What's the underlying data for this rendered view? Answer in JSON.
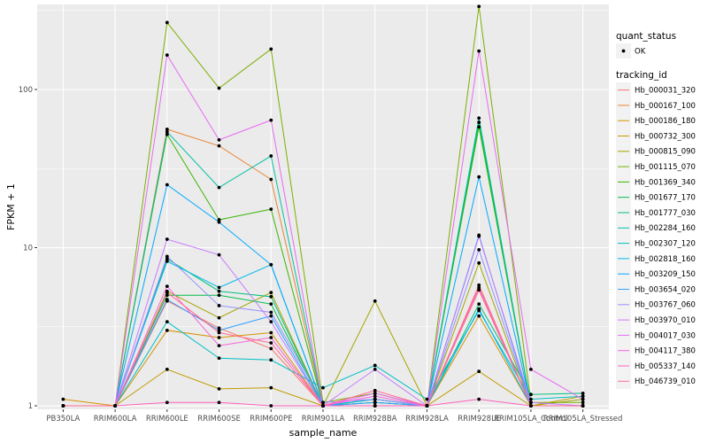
{
  "chart_data": {
    "type": "line",
    "xlabel": "sample_name",
    "ylabel": "FPKM + 1",
    "y_scale": "log10",
    "ylim": [
      0.95,
      345
    ],
    "y_ticks": [
      1,
      10,
      100
    ],
    "y_tick_labels": [
      "1",
      "10",
      "100"
    ],
    "grid": true,
    "legend_position": "right",
    "categories": [
      "PB350LA",
      "RRIM600LA",
      "RRIM600LE",
      "RRIM600SE",
      "RRIM600PE",
      "RRIM901LA",
      "RRIM928BA",
      "RRIM928LA",
      "RRIM928LE",
      "RRIM105LA_Control",
      "RRIM105LA_Stressed"
    ],
    "legend_quant": {
      "title": "quant_status",
      "items": [
        {
          "label": "OK",
          "color": "#000000"
        }
      ]
    },
    "legend_series_title": "tracking_id",
    "series": [
      {
        "name": "Hb_000031_320",
        "color": "#F8766D",
        "values": [
          1.0,
          1.0,
          4.6,
          3.1,
          2.3,
          1.0,
          1.0,
          1.0,
          5.8,
          1.0,
          1.0
        ]
      },
      {
        "name": "Hb_000167_100",
        "color": "#EA8331",
        "values": [
          1.0,
          1.0,
          56.0,
          44.0,
          27.0,
          1.0,
          1.0,
          1.0,
          5.4,
          1.0,
          1.0
        ]
      },
      {
        "name": "Hb_000186_180",
        "color": "#D89000",
        "values": [
          1.1,
          1.0,
          3.0,
          2.7,
          2.9,
          1.0,
          1.1,
          1.0,
          3.7,
          1.0,
          1.0
        ]
      },
      {
        "name": "Hb_000732_300",
        "color": "#C09B00",
        "values": [
          1.0,
          1.0,
          1.7,
          1.28,
          1.3,
          1.0,
          1.0,
          1.0,
          1.65,
          1.0,
          1.15
        ]
      },
      {
        "name": "Hb_000815_090",
        "color": "#A3A500",
        "values": [
          1.0,
          1.0,
          5.3,
          3.6,
          5.2,
          1.0,
          4.6,
          1.0,
          8.0,
          1.0,
          1.1
        ]
      },
      {
        "name": "Hb_001115_070",
        "color": "#7CAE00",
        "values": [
          1.0,
          1.0,
          265.0,
          102.0,
          180.0,
          1.05,
          1.2,
          1.0,
          335.0,
          1.05,
          1.05
        ]
      },
      {
        "name": "Hb_001369_340",
        "color": "#39B600",
        "values": [
          1.0,
          1.0,
          52.0,
          15.0,
          17.5,
          1.0,
          1.1,
          1.0,
          58.0,
          1.0,
          1.0
        ]
      },
      {
        "name": "Hb_001677_170",
        "color": "#00BB4E",
        "values": [
          1.0,
          1.0,
          5.0,
          5.0,
          4.4,
          1.0,
          1.05,
          1.0,
          62.0,
          1.0,
          1.0
        ]
      },
      {
        "name": "Hb_001777_030",
        "color": "#00BF7D",
        "values": [
          1.0,
          1.0,
          8.5,
          5.3,
          4.9,
          1.0,
          1.05,
          1.0,
          4.4,
          1.18,
          1.2
        ]
      },
      {
        "name": "Hb_002284_160",
        "color": "#00C1A3",
        "values": [
          1.0,
          1.0,
          54.0,
          24.0,
          38.0,
          1.0,
          1.1,
          1.0,
          66.0,
          1.0,
          1.0
        ]
      },
      {
        "name": "Hb_002307_120",
        "color": "#00BFC4",
        "values": [
          1.0,
          1.0,
          3.4,
          2.0,
          1.95,
          1.3,
          1.8,
          1.1,
          4.0,
          1.1,
          1.15
        ]
      },
      {
        "name": "Hb_002818_160",
        "color": "#00B8E7",
        "values": [
          1.0,
          1.0,
          8.2,
          5.6,
          7.8,
          1.0,
          1.1,
          1.0,
          4.1,
          1.0,
          1.0
        ]
      },
      {
        "name": "Hb_003209_150",
        "color": "#00A9FF",
        "values": [
          1.0,
          1.0,
          25.0,
          14.5,
          7.8,
          1.0,
          1.0,
          1.0,
          28.0,
          1.0,
          1.0
        ]
      },
      {
        "name": "Hb_003654_020",
        "color": "#35A2FF",
        "values": [
          1.0,
          1.0,
          4.7,
          3.0,
          3.7,
          1.0,
          1.05,
          1.0,
          12.0,
          1.0,
          1.0
        ]
      },
      {
        "name": "Hb_003767_060",
        "color": "#9590FF",
        "values": [
          1.0,
          1.0,
          8.8,
          4.3,
          3.9,
          1.05,
          1.1,
          1.0,
          9.7,
          1.0,
          1.0
        ]
      },
      {
        "name": "Hb_003970_010",
        "color": "#C77CFF",
        "values": [
          1.0,
          1.0,
          11.3,
          9.0,
          3.4,
          1.0,
          1.7,
          1.0,
          11.8,
          1.05,
          1.0
        ]
      },
      {
        "name": "Hb_004017_030",
        "color": "#E76BF3",
        "values": [
          1.0,
          1.0,
          165.0,
          48.0,
          64.0,
          1.0,
          1.2,
          1.0,
          175.0,
          1.7,
          1.1
        ]
      },
      {
        "name": "Hb_004117_380",
        "color": "#FA62DB",
        "values": [
          1.0,
          1.0,
          5.7,
          2.4,
          2.7,
          1.0,
          1.15,
          1.0,
          5.6,
          1.0,
          1.0
        ]
      },
      {
        "name": "Hb_005337_140",
        "color": "#FF62BC",
        "values": [
          1.0,
          1.0,
          1.05,
          1.05,
          1.0,
          1.0,
          1.0,
          1.0,
          1.1,
          1.0,
          1.0
        ]
      },
      {
        "name": "Hb_046739_010",
        "color": "#FF6C91",
        "values": [
          1.0,
          1.0,
          5.2,
          2.9,
          2.5,
          1.0,
          1.25,
          1.0,
          5.4,
          1.0,
          1.0
        ]
      }
    ]
  }
}
